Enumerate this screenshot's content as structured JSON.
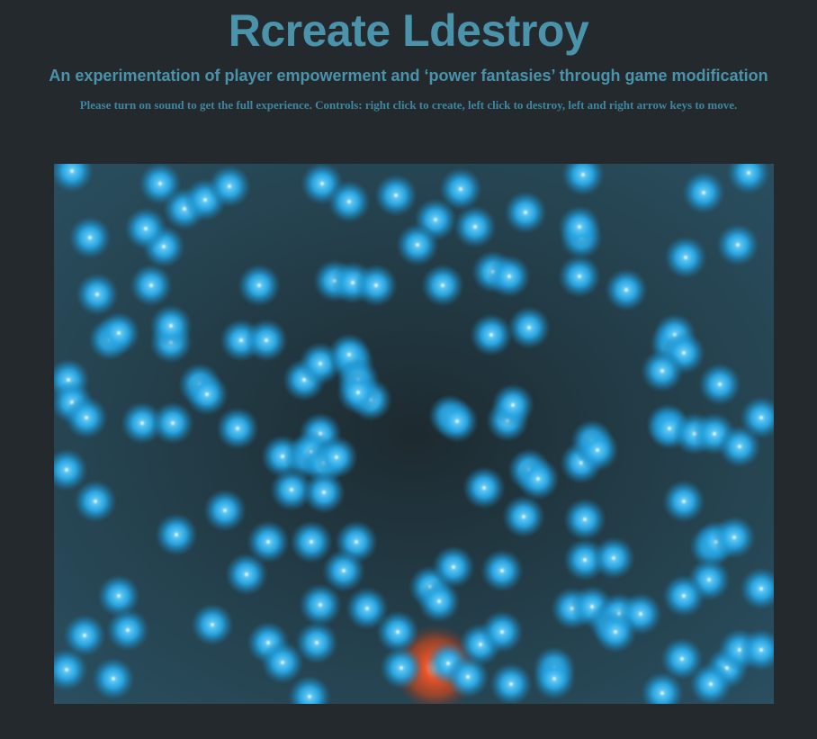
{
  "page": {
    "title": "Rcreate Ldestroy",
    "subtitle": "An experimentation of player empowerment and ‘power fantasies’ through game modification",
    "instructions": "Please turn on sound to get the full experience. Controls: right click to create, left click to destroy, left and right arrow keys to move."
  },
  "game": {
    "orb_color": "#29a8e6",
    "orb_core_color": "#e6f7ff",
    "player_color": "#e0532b",
    "background_colors": [
      "#1d2a30",
      "#2a4f60"
    ]
  }
}
